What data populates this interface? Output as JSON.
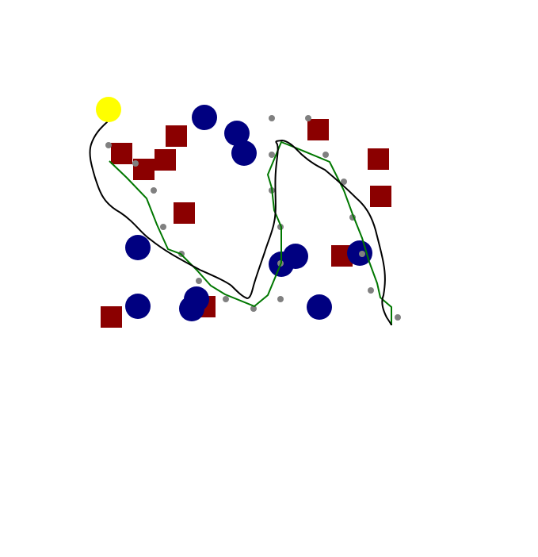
{
  "scene": {
    "background": "#ffffff",
    "colors": {
      "goal": "#ffff00",
      "obstacle_circle": "#000080",
      "obstacle_square": "#8b0000",
      "waypoint": "#808080",
      "planned_path": "#007700",
      "actual_path": "#000000"
    }
  }
}
